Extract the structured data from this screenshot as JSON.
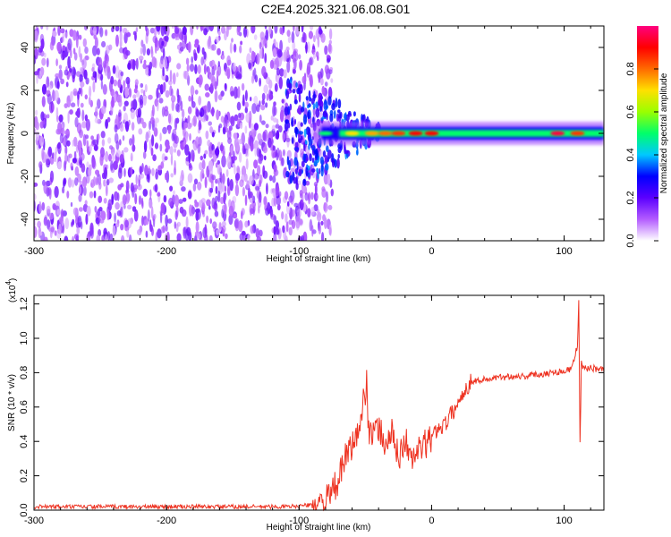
{
  "title": "C2E4.2025.321.06.08.G01",
  "chart_data": [
    {
      "type": "heatmap",
      "xlabel": "Height of straight line (km)",
      "ylabel": "Frequency (Hz)",
      "xlim": [
        -300,
        130
      ],
      "ylim": [
        -50,
        50
      ],
      "xticks": [
        -300,
        -200,
        -100,
        0,
        100
      ],
      "yticks": [
        -40,
        -20,
        0,
        20,
        40
      ],
      "colorbar": {
        "label": "Normalized spectral amplitude",
        "range": [
          0.0,
          1.0
        ],
        "ticks": [
          0.0,
          0.2,
          0.4,
          0.6,
          0.8
        ],
        "tick_labels": [
          "0.0",
          "0.2",
          "0.4",
          "0.6",
          "0.8"
        ],
        "colormap": "rainbow",
        "stops": [
          "#ffffff",
          "#b35cff",
          "#5b00ff",
          "#0000ff",
          "#00c8ff",
          "#00ff6a",
          "#9aff00",
          "#ffe000",
          "#ff6a00",
          "#ff0000",
          "#ff0080"
        ]
      },
      "noise_region": {
        "x_from": -300,
        "x_to": -75,
        "amplitude_max": 0.15
      },
      "transition_region": {
        "x_from": -110,
        "x_to": -40
      },
      "signal_band": {
        "x_from": -90,
        "x_to": 130,
        "center_hz": 0,
        "half_width_hz": 3
      },
      "hotspots": [
        {
          "x": -80,
          "amplitude": 0.5
        },
        {
          "x": -60,
          "amplitude": 0.7
        },
        {
          "x": -45,
          "amplitude": 0.75
        },
        {
          "x": -35,
          "amplitude": 0.8
        },
        {
          "x": -25,
          "amplitude": 0.85
        },
        {
          "x": -12,
          "amplitude": 0.9
        },
        {
          "x": 0,
          "amplitude": 0.9
        },
        {
          "x": 95,
          "amplitude": 0.95
        },
        {
          "x": 110,
          "amplitude": 0.85
        }
      ]
    },
    {
      "type": "line",
      "xlabel": "Height of straight line (km)",
      "ylabel": "SNR (10 * v/v)",
      "scale_label": "(x10",
      "scale_exponent": "4",
      "xlim": [
        -300,
        130
      ],
      "ylim": [
        0,
        1.25
      ],
      "xticks": [
        -300,
        -200,
        -100,
        0,
        100
      ],
      "yticks": [
        0.0,
        0.2,
        0.4,
        0.6,
        0.8,
        1.0,
        1.2
      ],
      "ytick_labels": [
        "0.0",
        "0.2",
        "0.4",
        "0.6",
        "0.8",
        "1.0",
        "1.2"
      ],
      "line_color": "#ee3322",
      "series": [
        {
          "x": [
            -300,
            -250,
            -200,
            -150,
            -110,
            -90,
            -80,
            -75,
            -70,
            -65,
            -60,
            -55,
            -50,
            -49,
            -48,
            -45,
            -40,
            -35,
            -30,
            -25,
            -20,
            -15,
            -10,
            -5,
            0,
            5,
            10,
            15,
            20,
            25,
            30,
            40,
            50,
            60,
            70,
            80,
            90,
            100,
            105,
            108,
            110,
            111,
            112,
            113,
            115,
            120,
            125,
            130
          ],
          "y": [
            0.02,
            0.02,
            0.02,
            0.02,
            0.02,
            0.03,
            0.05,
            0.1,
            0.18,
            0.3,
            0.38,
            0.45,
            0.7,
            0.8,
            0.5,
            0.42,
            0.48,
            0.38,
            0.45,
            0.3,
            0.42,
            0.28,
            0.35,
            0.38,
            0.42,
            0.48,
            0.5,
            0.56,
            0.62,
            0.7,
            0.75,
            0.76,
            0.77,
            0.78,
            0.78,
            0.79,
            0.8,
            0.81,
            0.82,
            0.9,
            0.95,
            1.22,
            0.38,
            0.85,
            0.82,
            0.83,
            0.82,
            0.82
          ]
        }
      ]
    }
  ]
}
